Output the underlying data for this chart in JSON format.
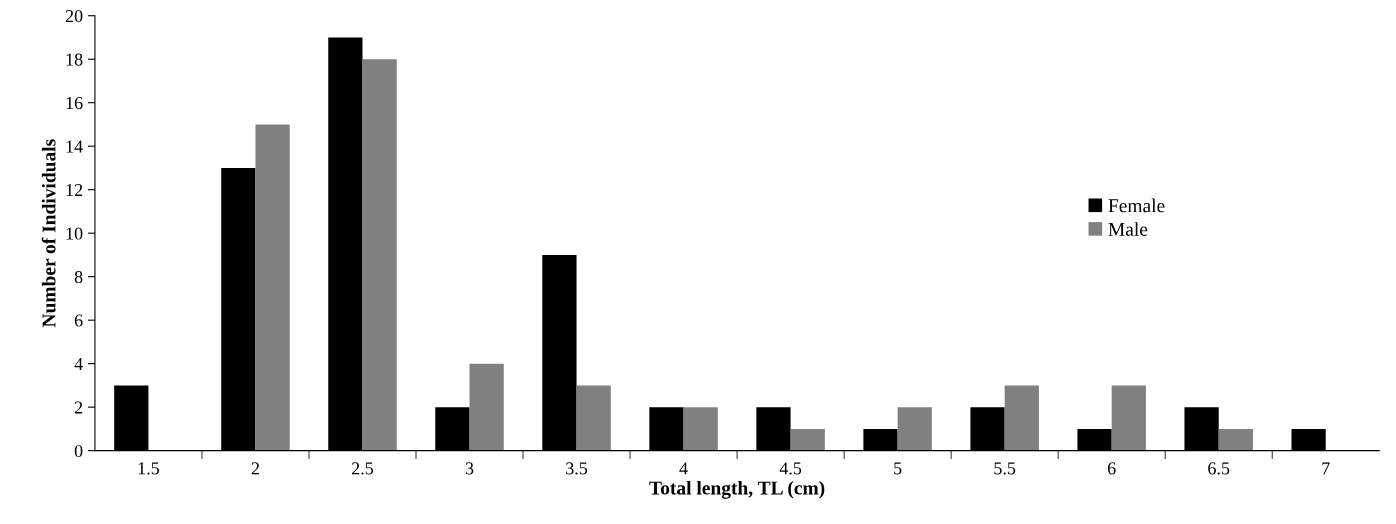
{
  "chart_data": {
    "type": "bar",
    "xlabel": "Total length, TL (cm)",
    "ylabel": "Number of Individuals",
    "categories": [
      "1.5",
      "2",
      "2.5",
      "3",
      "3.5",
      "4",
      "4.5",
      "5",
      "5.5",
      "6",
      "6.5",
      "7"
    ],
    "series": [
      {
        "name": "Female",
        "color": "#000000",
        "values": [
          3,
          13,
          19,
          2,
          9,
          2,
          2,
          1,
          2,
          1,
          2,
          1
        ]
      },
      {
        "name": "Male",
        "color": "#808080",
        "values": [
          0,
          15,
          18,
          4,
          3,
          2,
          1,
          2,
          3,
          3,
          1,
          0
        ]
      }
    ],
    "ylim": [
      0,
      20
    ],
    "yticks": [
      0,
      2,
      4,
      6,
      8,
      10,
      12,
      14,
      16,
      18,
      20
    ],
    "grid": false,
    "legend": "right"
  }
}
